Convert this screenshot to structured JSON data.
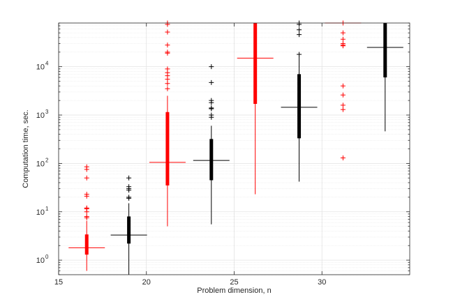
{
  "chart_data": {
    "type": "box",
    "xlabel": "Problem dimension, n",
    "ylabel": "Computation time, sec.",
    "xlim": [
      15,
      35
    ],
    "ylim": [
      0.5,
      80000
    ],
    "yscale": "log",
    "grid": true,
    "x_ticks": [
      15,
      20,
      25,
      30
    ],
    "x_tick_labels": [
      "15",
      "20",
      "25",
      "30"
    ],
    "y_ticks": [
      1,
      10,
      100,
      1000,
      10000
    ],
    "y_tick_labels": [
      {
        "base": "10",
        "exp": "0"
      },
      {
        "base": "10",
        "exp": "1"
      },
      {
        "base": "10",
        "exp": "2"
      },
      {
        "base": "10",
        "exp": "3"
      },
      {
        "base": "10",
        "exp": "4"
      }
    ],
    "colors": {
      "red": "#ff0000",
      "black": "#000000",
      "grid": "#e3e3e3",
      "axis": "#262626"
    },
    "boxes": [
      {
        "x": 16.6,
        "color": "red",
        "q1": 1.3,
        "median": 1.8,
        "q3": 3.4,
        "whisker_low": 0.6,
        "whisker_high": 6.5,
        "outliers": [
          85,
          75,
          50,
          23,
          21,
          12,
          11.5,
          10,
          8,
          7.5
        ]
      },
      {
        "x": 19.0,
        "color": "black",
        "q1": 2.2,
        "median": 3.3,
        "q3": 8,
        "whisker_low": 0.5,
        "whisker_high": 15,
        "outliers": [
          50,
          33,
          30,
          28,
          20,
          19
        ]
      },
      {
        "x": 21.2,
        "color": "red",
        "q1": 35,
        "median": 105,
        "q3": 1150,
        "whisker_low": 5,
        "whisker_high": 2500,
        "outliers": [
          80000,
          75000,
          52000,
          28000,
          20000,
          19000,
          9000,
          7500,
          6500,
          5500,
          4500,
          3500
        ]
      },
      {
        "x": 23.7,
        "color": "black",
        "q1": 45,
        "median": 115,
        "q3": 320,
        "whisker_low": 5.5,
        "whisker_high": 600,
        "outliers": [
          10000,
          4700,
          2000,
          1800,
          1400,
          1350,
          1000,
          900
        ]
      },
      {
        "x": 26.2,
        "color": "red",
        "q1": 1700,
        "median": 15000,
        "q3": 80000,
        "whisker_low": 23,
        "whisker_high": 80000,
        "outliers": []
      },
      {
        "x": 28.7,
        "color": "black",
        "q1": 330,
        "median": 1450,
        "q3": 7000,
        "whisker_low": 42,
        "whisker_high": 17000,
        "outliers": [
          80000,
          75000,
          58000,
          46000,
          18000
        ]
      },
      {
        "x": 31.2,
        "color": "red",
        "q1": 80000,
        "median": 80000,
        "q3": 80000,
        "whisker_low": 80000,
        "whisker_high": 80000,
        "outliers": [
          80000,
          50000,
          37000,
          30000,
          28000,
          27000,
          4000,
          2600,
          1600,
          1300,
          130
        ]
      },
      {
        "x": 33.6,
        "color": "black",
        "q1": 6000,
        "median": 25000,
        "q3": 80000,
        "whisker_low": 460,
        "whisker_high": 80000,
        "outliers": []
      }
    ]
  }
}
